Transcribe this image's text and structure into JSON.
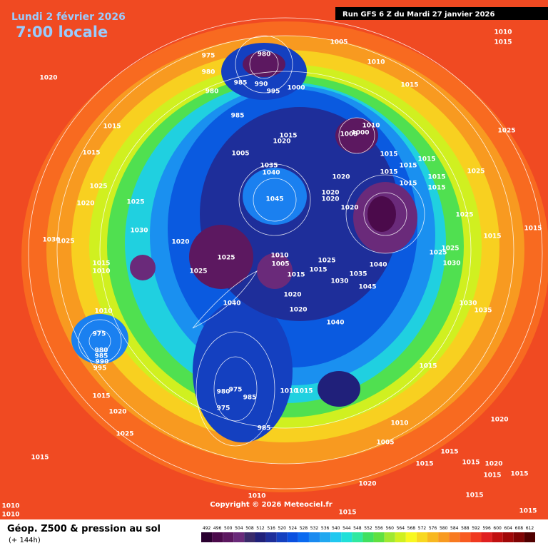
{
  "header": {
    "date": "Lundi 2 février 2026",
    "time": "7:00 locale",
    "run": "Run GFS 6 Z du Mardi 27 janvier 2026"
  },
  "copyright": "Copyright © 2026 Meteociel.fr",
  "footer": {
    "title": "Géop. Z500 & pression au sol",
    "lead": "(+ 144h)"
  },
  "colorbar": {
    "values": [
      492,
      496,
      500,
      504,
      508,
      512,
      516,
      520,
      524,
      528,
      532,
      536,
      540,
      544,
      548,
      552,
      556,
      560,
      564,
      568,
      572,
      576,
      580,
      584,
      588,
      592,
      596,
      600,
      604,
      608,
      612
    ],
    "colors": [
      "#2a0030",
      "#4b0a4b",
      "#5c1860",
      "#6a2a7a",
      "#3a2a6a",
      "#20207a",
      "#1e2e9a",
      "#1440c0",
      "#0a50e0",
      "#0a6af0",
      "#1a8af0",
      "#20a8f0",
      "#20c8f0",
      "#20e0d8",
      "#30e8a0",
      "#40e060",
      "#60e040",
      "#a0e830",
      "#d0f020",
      "#f8f820",
      "#f8d820",
      "#f8b820",
      "#f89a20",
      "#f87a20",
      "#f85a20",
      "#f03a20",
      "#e02020",
      "#c01010",
      "#a00808",
      "#800404",
      "#500000"
    ]
  },
  "isobar_labels": [
    1020,
    1015,
    1015,
    1025,
    1020,
    1025,
    1030,
    1030,
    1025,
    1015,
    1010,
    1020,
    1025,
    1025,
    1010,
    1005,
    1015,
    1015,
    1025,
    1030,
    1035,
    1040,
    1045,
    1040,
    1020,
    1020,
    1040,
    1045,
    1035,
    1040,
    1015,
    1020,
    1005,
    975,
    980,
    980,
    985,
    990,
    995,
    1000,
    985,
    980,
    1005,
    1010,
    1015,
    1010,
    1015,
    1010,
    1005,
    1000,
    1015,
    1015,
    1015,
    1015,
    1015,
    1015,
    1015,
    1020,
    1020,
    1020,
    1020,
    1025,
    1025,
    1025,
    1025,
    1025,
    1030,
    1015,
    1015,
    1030,
    1035,
    1010,
    975,
    980,
    985,
    990,
    995,
    1015,
    1020,
    1025,
    1015,
    980,
    975,
    975,
    985,
    985,
    1010,
    1015,
    1015,
    1010,
    1005,
    1015,
    1015,
    1015,
    1015,
    1015,
    1015,
    1020,
    1020,
    1010,
    1015,
    1010,
    1010,
    1015,
    1020
  ]
}
